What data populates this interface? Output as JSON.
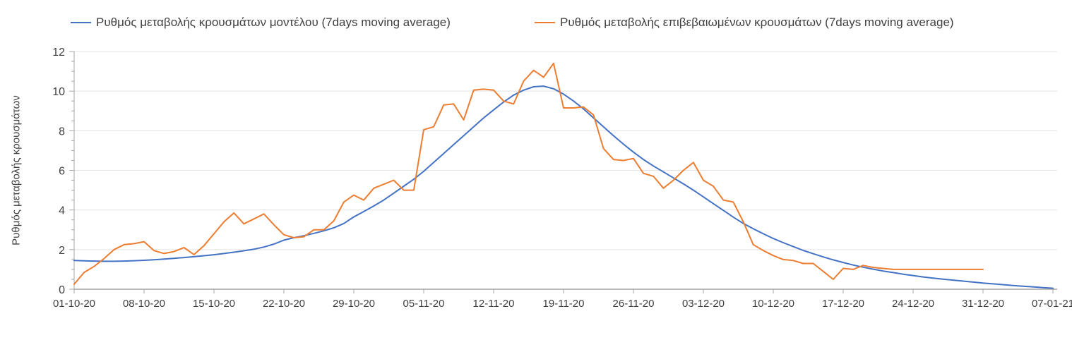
{
  "legend": {
    "items": [
      {
        "label": "Ρυθμός μεταβολής κρουσμάτων μοντέλου (7days moving average)",
        "color": "#4472C4"
      },
      {
        "label": "Ρυθμός μεταβολής επιβεβαιωμένων κρουσμάτων (7days moving average)",
        "color": "#ED7D31"
      }
    ]
  },
  "chart_data": {
    "type": "line",
    "title": "",
    "xlabel": "",
    "ylabel": "Ρυθμός μεταβολής κρουσμάτων",
    "ylim": [
      0,
      12
    ],
    "y_major_step": 2,
    "y_minor_step": 0.5,
    "grid": "horizontal-major-only",
    "legend_position": "top",
    "x_unit": "day-index from 01-10-20, daily data",
    "x_tick_labels": [
      "01-10-20",
      "08-10-20",
      "15-10-20",
      "22-10-20",
      "29-10-20",
      "05-11-20",
      "12-11-20",
      "19-11-20",
      "26-11-20",
      "03-12-20",
      "10-12-20",
      "17-12-20",
      "24-12-20",
      "31-12-20",
      "07-01-21"
    ],
    "x_tick_positions": [
      0,
      7,
      14,
      21,
      28,
      35,
      42,
      49,
      56,
      63,
      70,
      77,
      84,
      91,
      98
    ],
    "y_tick_labels": [
      "0",
      "2",
      "4",
      "6",
      "8",
      "10",
      "12"
    ],
    "series": [
      {
        "name": "Ρυθμός μεταβολής κρουσμάτων μοντέλου (7days moving average)",
        "color": "#4472C4",
        "values": [
          1.45,
          1.43,
          1.42,
          1.41,
          1.41,
          1.42,
          1.44,
          1.46,
          1.49,
          1.52,
          1.56,
          1.6,
          1.64,
          1.69,
          1.74,
          1.8,
          1.87,
          1.94,
          2.02,
          2.13,
          2.28,
          2.48,
          2.6,
          2.7,
          2.82,
          2.95,
          3.1,
          3.32,
          3.65,
          3.92,
          4.2,
          4.5,
          4.85,
          5.2,
          5.55,
          5.95,
          6.4,
          6.85,
          7.3,
          7.75,
          8.2,
          8.65,
          9.05,
          9.45,
          9.8,
          10.05,
          10.22,
          10.25,
          10.12,
          9.85,
          9.5,
          9.1,
          8.65,
          8.2,
          7.75,
          7.32,
          6.92,
          6.55,
          6.22,
          5.92,
          5.62,
          5.32,
          5.0,
          4.66,
          4.32,
          3.98,
          3.64,
          3.32,
          3.05,
          2.8,
          2.56,
          2.35,
          2.15,
          1.96,
          1.79,
          1.63,
          1.48,
          1.35,
          1.22,
          1.11,
          1.01,
          0.92,
          0.84,
          0.76,
          0.69,
          0.62,
          0.56,
          0.51,
          0.46,
          0.41,
          0.36,
          0.31,
          0.27,
          0.23,
          0.19,
          0.15,
          0.12,
          0.08,
          0.05
        ]
      },
      {
        "name": "Ρυθμός μεταβολής επιβεβαιωμένων κρουσμάτων (7days moving average)",
        "color": "#ED7D31",
        "values": [
          0.25,
          0.85,
          1.15,
          1.55,
          2.0,
          2.25,
          2.3,
          2.4,
          1.95,
          1.8,
          1.9,
          2.1,
          1.75,
          2.2,
          2.8,
          3.4,
          3.85,
          3.3,
          3.55,
          3.8,
          3.25,
          2.75,
          2.6,
          2.65,
          3.0,
          3.0,
          3.45,
          4.4,
          4.75,
          4.5,
          5.1,
          5.3,
          5.5,
          5.0,
          5.0,
          8.05,
          8.2,
          9.3,
          9.35,
          8.55,
          10.05,
          10.1,
          10.05,
          9.5,
          9.35,
          10.5,
          11.05,
          10.7,
          11.4,
          9.15,
          9.15,
          9.2,
          8.8,
          7.1,
          6.55,
          6.5,
          6.6,
          5.85,
          5.7,
          5.1,
          5.5,
          6.0,
          6.4,
          5.5,
          5.2,
          4.5,
          4.4,
          3.4,
          2.25,
          1.95,
          1.7,
          1.5,
          1.45,
          1.3,
          1.3,
          0.9,
          0.5,
          1.05,
          1.0,
          1.2,
          1.1,
          1.05,
          1.0,
          1.0,
          1.0,
          1.0,
          1.0,
          1.0,
          1.0,
          1.0,
          1.0,
          1.0,
          null,
          null,
          null,
          null,
          null,
          null,
          null
        ]
      }
    ],
    "colors": {
      "gridline": "#e3e3e3",
      "axis": "#a6a6a6",
      "tick_text": "#404040"
    }
  }
}
